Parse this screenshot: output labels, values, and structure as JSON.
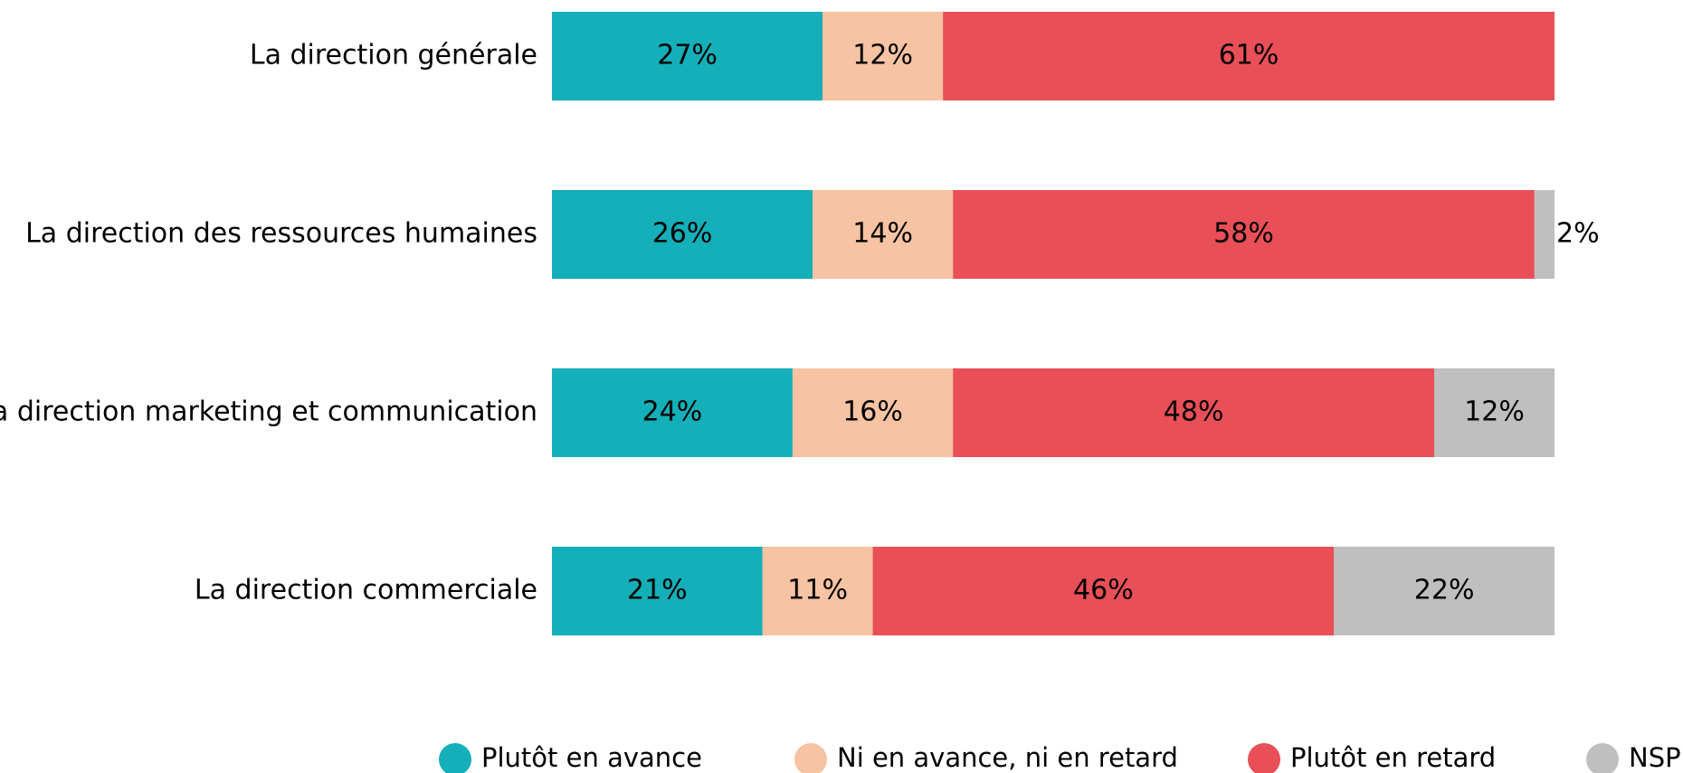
{
  "chart_data": {
    "type": "stacked-bar-horizontal",
    "categories": [
      "La direction générale",
      "La direction des ressources humaines",
      "La direction marketing et communication",
      "La direction commerciale"
    ],
    "xlim": [
      0,
      100
    ],
    "legend": "bottom",
    "series": [
      {
        "name": "Plutôt en avance",
        "color": "#14afb8",
        "label_color": "#ffffff",
        "values": [
          27,
          26,
          24,
          21
        ],
        "value_labels": [
          "27%",
          "26%",
          "24%",
          "21%"
        ]
      },
      {
        "name": "Ni en avance, ni en retard",
        "color": "#f7c3a2",
        "label_color": "#000000",
        "values": [
          12,
          14,
          16,
          11
        ],
        "value_labels": [
          "12%",
          "14%",
          "16%",
          "11%"
        ]
      },
      {
        "name": "Plutôt en retard",
        "color": "#e84f57",
        "label_color": "#ffffff",
        "values": [
          61,
          58,
          48,
          46
        ],
        "value_labels": [
          "61%",
          "58%",
          "48%",
          "46%"
        ]
      },
      {
        "name": "NSP",
        "color": "#bfbfbf",
        "label_color": "#000000",
        "values": [
          null,
          2,
          12,
          22
        ],
        "value_labels": [
          null,
          "2%",
          "12%",
          "22%"
        ]
      }
    ]
  }
}
